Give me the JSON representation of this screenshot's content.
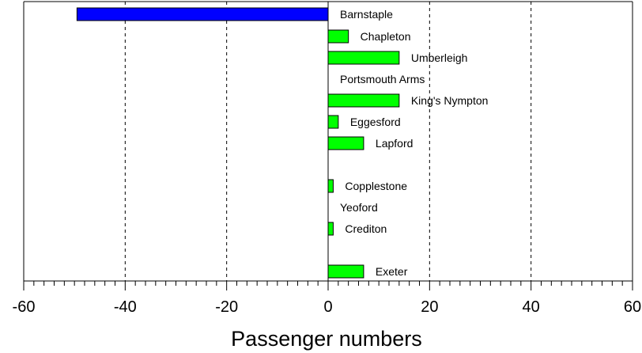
{
  "chart_data": {
    "type": "bar",
    "orientation": "horizontal",
    "xlabel": "Passenger numbers",
    "xlim": [
      -60,
      60
    ],
    "x_ticks": [
      -60,
      -40,
      -20,
      0,
      20,
      40,
      60
    ],
    "x_tick_labels": [
      "-60",
      "-40",
      "-20",
      "0",
      "20",
      "40",
      "60"
    ],
    "grid": "vertical dashed lines at major ticks",
    "categories": [
      "Barnstaple",
      "Chapleton",
      "Umberleigh",
      "Portsmouth Arms",
      "King's Nympton",
      "Eggesford",
      "Lapford",
      "Copplestone",
      "Yeoford",
      "Crediton",
      "Exeter"
    ],
    "values": [
      -49.5,
      4,
      14,
      0,
      14,
      2,
      7,
      1,
      0,
      1,
      7
    ],
    "colors": {
      "negative": "#0000ff",
      "positive": "#00ff00"
    }
  }
}
